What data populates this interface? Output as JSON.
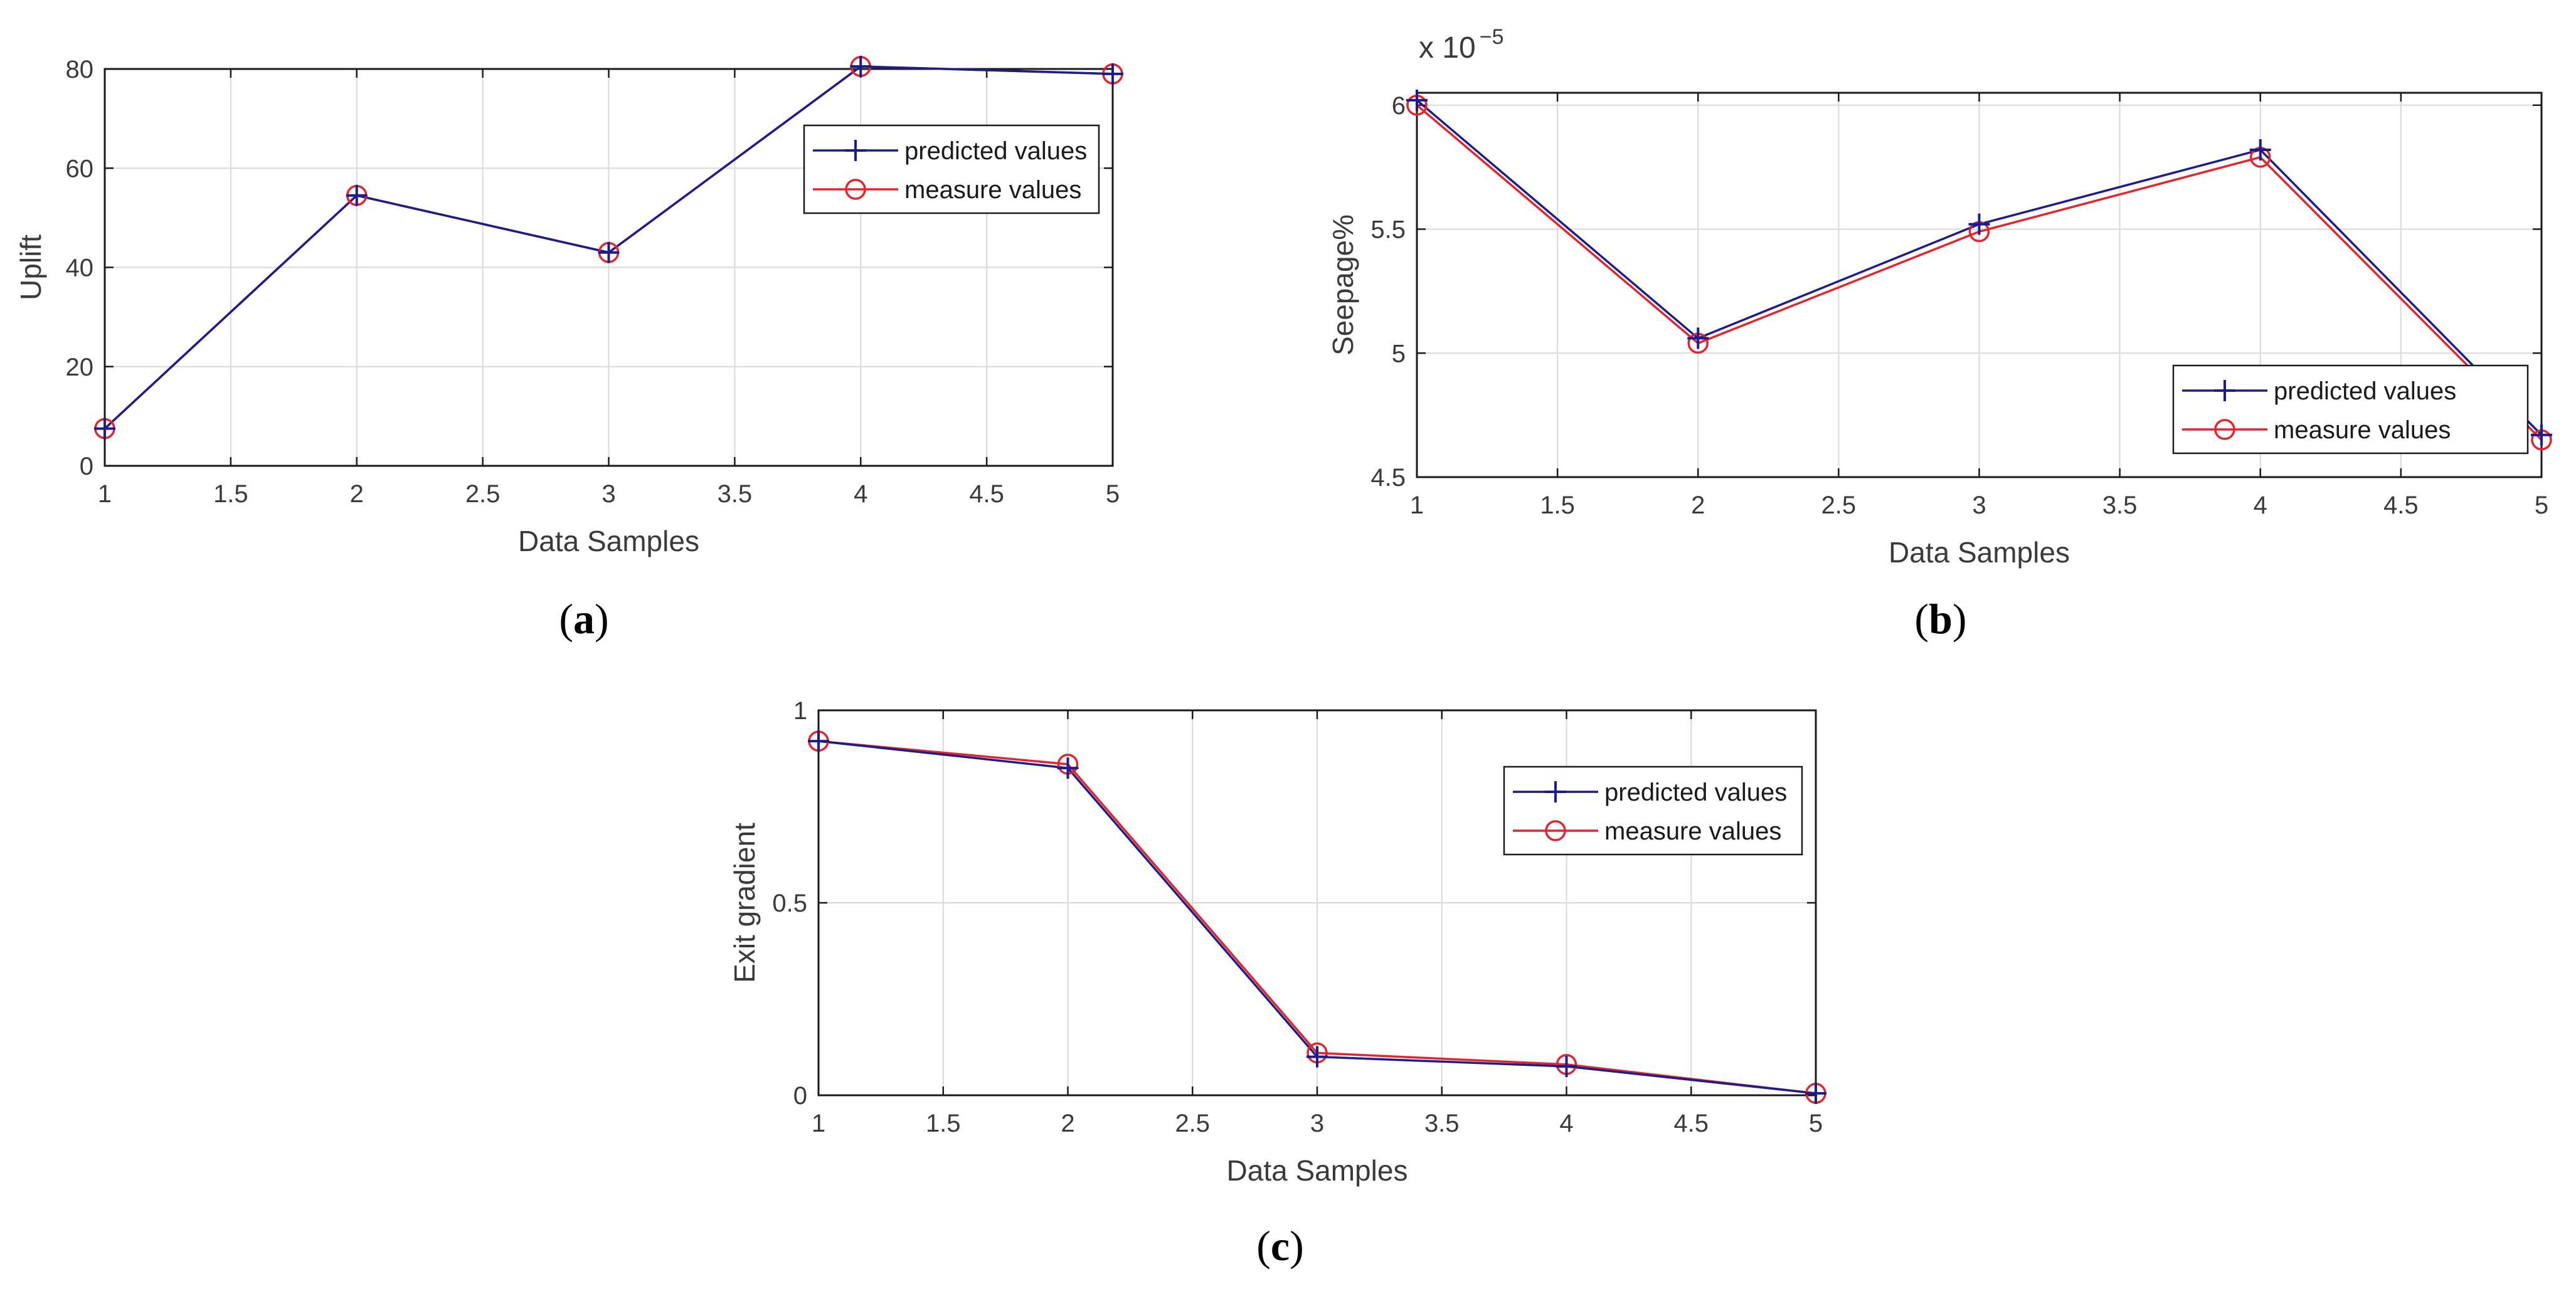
{
  "figure": {
    "colors": {
      "predicted": "#1c1c8c",
      "measured": "#e3242b",
      "grid": "#d9d9d9"
    }
  },
  "chart_data": [
    {
      "id": "a",
      "type": "line",
      "caption_letter": "a",
      "xlabel": "Data Samples",
      "ylabel": "Uplift",
      "xlim": [
        1,
        5
      ],
      "ylim": [
        0,
        80
      ],
      "xticks": [
        1,
        1.5,
        2,
        2.5,
        3,
        3.5,
        4,
        4.5,
        5
      ],
      "xtick_labels": [
        "1",
        "1.5",
        "2",
        "2.5",
        "3",
        "3.5",
        "4",
        "4.5",
        "5"
      ],
      "yticks": [
        0,
        20,
        40,
        60,
        80
      ],
      "ytick_labels": [
        "0",
        "20",
        "40",
        "60",
        "80"
      ],
      "exponent_label": null,
      "legend": {
        "position": "top-right",
        "entries": [
          "predicted values",
          "measure values"
        ]
      },
      "x": [
        1,
        2,
        3,
        4,
        5
      ],
      "series": [
        {
          "name": "predicted values",
          "marker": "plus",
          "color": "#1c1c8c",
          "values": [
            7.5,
            54.5,
            43,
            80.5,
            79
          ]
        },
        {
          "name": "measure values",
          "marker": "circle",
          "color": "#e3242b",
          "values": [
            7.5,
            54.5,
            43,
            80.5,
            79
          ]
        }
      ]
    },
    {
      "id": "b",
      "type": "line",
      "caption_letter": "b",
      "xlabel": "Data Samples",
      "ylabel": "Seepage%",
      "xlim": [
        1,
        5
      ],
      "ylim": [
        4.5,
        6.05
      ],
      "xticks": [
        1,
        1.5,
        2,
        2.5,
        3,
        3.5,
        4,
        4.5,
        5
      ],
      "xtick_labels": [
        "1",
        "1.5",
        "2",
        "2.5",
        "3",
        "3.5",
        "4",
        "4.5",
        "5"
      ],
      "yticks": [
        4.5,
        5,
        5.5,
        6
      ],
      "ytick_labels": [
        "4.5",
        "5",
        "5.5",
        "6"
      ],
      "exponent_label": {
        "base": "x 10",
        "power": "−5"
      },
      "legend": {
        "position": "bottom-right",
        "entries": [
          "predicted values",
          "measure values"
        ]
      },
      "x": [
        1,
        2,
        3,
        4,
        5
      ],
      "series": [
        {
          "name": "predicted values",
          "marker": "plus",
          "color": "#1c1c8c",
          "values": [
            6.02,
            5.06,
            5.52,
            5.82,
            4.67
          ]
        },
        {
          "name": "measure values",
          "marker": "circle",
          "color": "#e3242b",
          "values": [
            6.0,
            5.04,
            5.49,
            5.79,
            4.65
          ]
        }
      ]
    },
    {
      "id": "c",
      "type": "line",
      "caption_letter": "c",
      "xlabel": "Data Samples",
      "ylabel": "Exit gradient",
      "xlim": [
        1,
        5
      ],
      "ylim": [
        0,
        1
      ],
      "xticks": [
        1,
        1.5,
        2,
        2.5,
        3,
        3.5,
        4,
        4.5,
        5
      ],
      "xtick_labels": [
        "1",
        "1.5",
        "2",
        "2.5",
        "3",
        "3.5",
        "4",
        "4.5",
        "5"
      ],
      "yticks": [
        0,
        0.5,
        1
      ],
      "ytick_labels": [
        "0",
        "0.5",
        "1"
      ],
      "exponent_label": null,
      "legend": {
        "position": "top-right",
        "entries": [
          "predicted values",
          "measure values"
        ]
      },
      "x": [
        1,
        2,
        3,
        4,
        5
      ],
      "series": [
        {
          "name": "predicted values",
          "marker": "plus",
          "color": "#1c1c8c",
          "values": [
            0.92,
            0.85,
            0.1,
            0.075,
            0.005
          ]
        },
        {
          "name": "measure values",
          "marker": "circle",
          "color": "#e3242b",
          "values": [
            0.92,
            0.86,
            0.11,
            0.08,
            0.005
          ]
        }
      ]
    }
  ]
}
